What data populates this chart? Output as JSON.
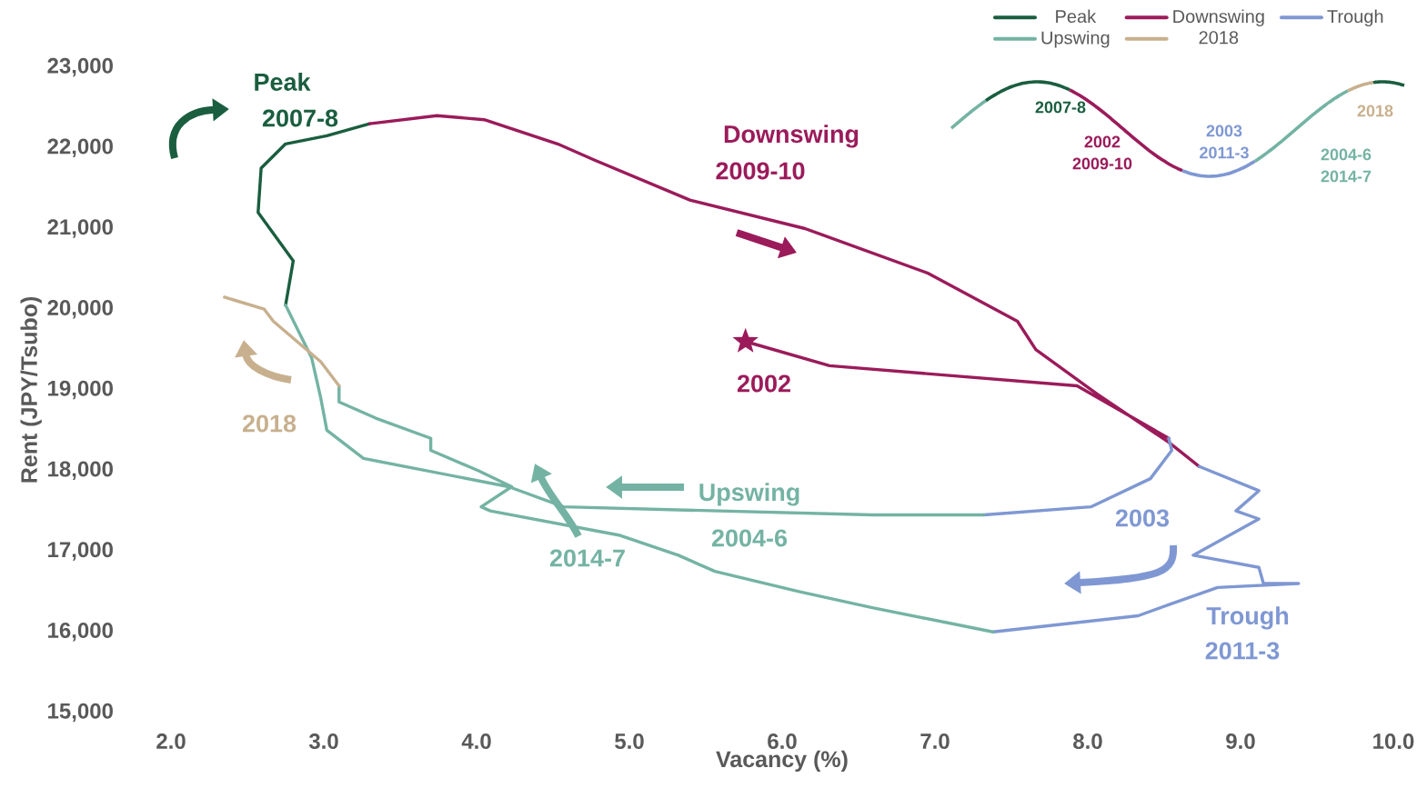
{
  "chart_data": {
    "type": "line",
    "xlabel": "Vacancy (%)",
    "ylabel": "Rent (JPY/Tsubo)",
    "xlim": [
      2,
      10
    ],
    "ylim": [
      15000,
      23000
    ],
    "xticks": [
      {
        "value": 2,
        "label": "2.0"
      },
      {
        "value": 3,
        "label": "3.0"
      },
      {
        "value": 4,
        "label": "4.0"
      },
      {
        "value": 5,
        "label": "5.0"
      },
      {
        "value": 6,
        "label": "6.0"
      },
      {
        "value": 7,
        "label": "7.0"
      },
      {
        "value": 8,
        "label": "8.0"
      },
      {
        "value": 9,
        "label": "9.0"
      },
      {
        "value": 10,
        "label": "10.0"
      }
    ],
    "yticks": [
      {
        "value": 15000,
        "label": "15,000"
      },
      {
        "value": 16000,
        "label": "16,000"
      },
      {
        "value": 17000,
        "label": "17,000"
      },
      {
        "value": 18000,
        "label": "18,000"
      },
      {
        "value": 19000,
        "label": "19,000"
      },
      {
        "value": 20000,
        "label": "20,000"
      },
      {
        "value": 21000,
        "label": "21,000"
      },
      {
        "value": 22000,
        "label": "22,000"
      },
      {
        "value": 23000,
        "label": "23,000"
      }
    ],
    "legend": "top right",
    "line_style": "solid",
    "series": [
      {
        "name": "Peak",
        "color": "#1a5e3f",
        "x": [
          2.75,
          2.8,
          2.57,
          2.59,
          2.75,
          3.02,
          3.3
        ],
        "values": [
          20050,
          20600,
          21200,
          21750,
          22050,
          22150,
          22300
        ]
      },
      {
        "name": "Downswing",
        "color": "#9b1b5a",
        "x": [
          5.76,
          6.31,
          7.93,
          8.53,
          null,
          3.3,
          3.74,
          4.05,
          4.53,
          4.77,
          5.4,
          6.15,
          6.95,
          7.54,
          7.66,
          8.06,
          8.53,
          8.73
        ],
        "values": [
          19600,
          19300,
          19050,
          18400,
          null,
          22300,
          22400,
          22350,
          22050,
          21850,
          21350,
          21000,
          20450,
          19850,
          19500,
          18950,
          18350,
          18050
        ]
      },
      {
        "name": "Trough",
        "color": "#7f98d3",
        "x": [
          8.53,
          8.55,
          8.41,
          8.02,
          7.32,
          null,
          8.73,
          9.12,
          8.97,
          9.12,
          8.69,
          9.12,
          9.15,
          9.38,
          8.85,
          8.55,
          8.33,
          7.38
        ],
        "values": [
          18400,
          18250,
          17900,
          17550,
          17450,
          null,
          18050,
          17750,
          17500,
          17400,
          16950,
          16800,
          16600,
          16600,
          16550,
          16350,
          16200,
          16000
        ]
      },
      {
        "name": "Upswing",
        "color": "#74b3a3",
        "x": [
          7.32,
          6.59,
          4.57,
          4.21,
          3.26,
          3.02,
          2.98,
          2.92,
          2.75,
          null,
          7.38,
          6.59,
          6.11,
          5.56,
          5.32,
          4.93,
          4.09,
          4.03,
          4.23,
          4.01,
          3.7,
          3.7,
          3.34,
          3.1,
          3.1
        ],
        "values": [
          17450,
          17450,
          17550,
          17800,
          18150,
          18500,
          18900,
          19400,
          20050,
          null,
          16000,
          16300,
          16500,
          16750,
          16950,
          17200,
          17500,
          17550,
          17800,
          18000,
          18250,
          18400,
          18650,
          18850,
          19050
        ]
      },
      {
        "name": "2018",
        "color": "#c8b08e",
        "x": [
          3.1,
          2.98,
          2.67,
          2.61,
          2.35
        ],
        "values": [
          19050,
          19350,
          19850,
          20000,
          20150
        ]
      },
      {
        "type": "scatter",
        "marker": "star",
        "color": "#9b1b5a",
        "x": [
          5.76
        ],
        "values": [
          19600
        ]
      }
    ],
    "annotations": [
      "Peak",
      "2007-8",
      "Downswing",
      "2009-10",
      "2002",
      "2018",
      "Upswing",
      "2004-6",
      "2014-7",
      "2003",
      "Trough",
      "2011-3",
      "2007-8",
      "2002",
      "2009-10",
      "2003",
      "2011-3",
      "2004-6",
      "2014-7",
      "2018"
    ]
  }
}
